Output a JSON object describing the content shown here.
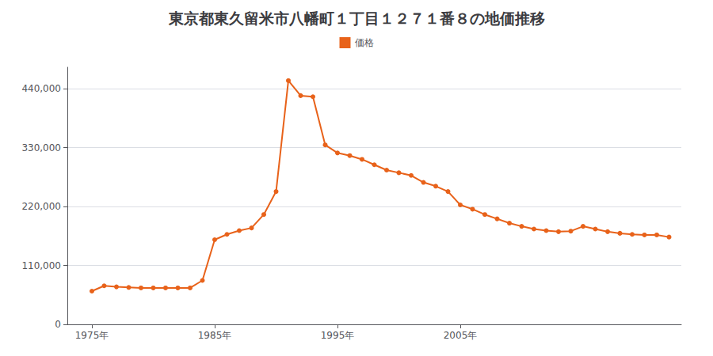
{
  "chart_data": {
    "type": "line",
    "title": "東京都東久留米市八幡町１丁目１２７１番８の地価推移",
    "x": [
      1975,
      1976,
      1977,
      1978,
      1979,
      1980,
      1981,
      1982,
      1983,
      1984,
      1985,
      1986,
      1987,
      1988,
      1989,
      1990,
      1991,
      1992,
      1993,
      1994,
      1995,
      1996,
      1997,
      1998,
      1999,
      2000,
      2001,
      2002,
      2003,
      2004,
      2005,
      2006,
      2007,
      2008,
      2009,
      2010,
      2011,
      2012,
      2013,
      2014,
      2015,
      2016,
      2017,
      2018,
      2019,
      2020,
      2021,
      2022
    ],
    "series": [
      {
        "name": "価格",
        "color": "#e8621a",
        "marker": "circle",
        "values": [
          62000,
          72000,
          70000,
          69000,
          68000,
          68000,
          68000,
          68000,
          68000,
          82000,
          158000,
          168000,
          175000,
          180000,
          205000,
          248000,
          455000,
          427000,
          425000,
          335000,
          320000,
          315000,
          308000,
          298000,
          288000,
          283000,
          278000,
          265000,
          258000,
          248000,
          223000,
          215000,
          205000,
          197000,
          189000,
          183000,
          178000,
          175000,
          173000,
          174000,
          183000,
          178000,
          173000,
          170000,
          168000,
          167000,
          167000,
          163000
        ]
      }
    ],
    "xlim": [
      1973,
      2023
    ],
    "xticks": [
      {
        "value": 1975,
        "label": "1975年"
      },
      {
        "value": 1985,
        "label": "1985年"
      },
      {
        "value": 1995,
        "label": "1995年"
      },
      {
        "value": 2005,
        "label": "2005年"
      }
    ],
    "ylim": [
      0,
      480000
    ],
    "yticks": [
      0,
      {
        "value": 110000,
        "label": "110,000"
      },
      {
        "value": 220000,
        "label": "220,000"
      },
      {
        "value": 330000,
        "label": "330,000"
      },
      {
        "value": 440000,
        "label": "440,000"
      }
    ],
    "grid": true,
    "legend": "top"
  }
}
